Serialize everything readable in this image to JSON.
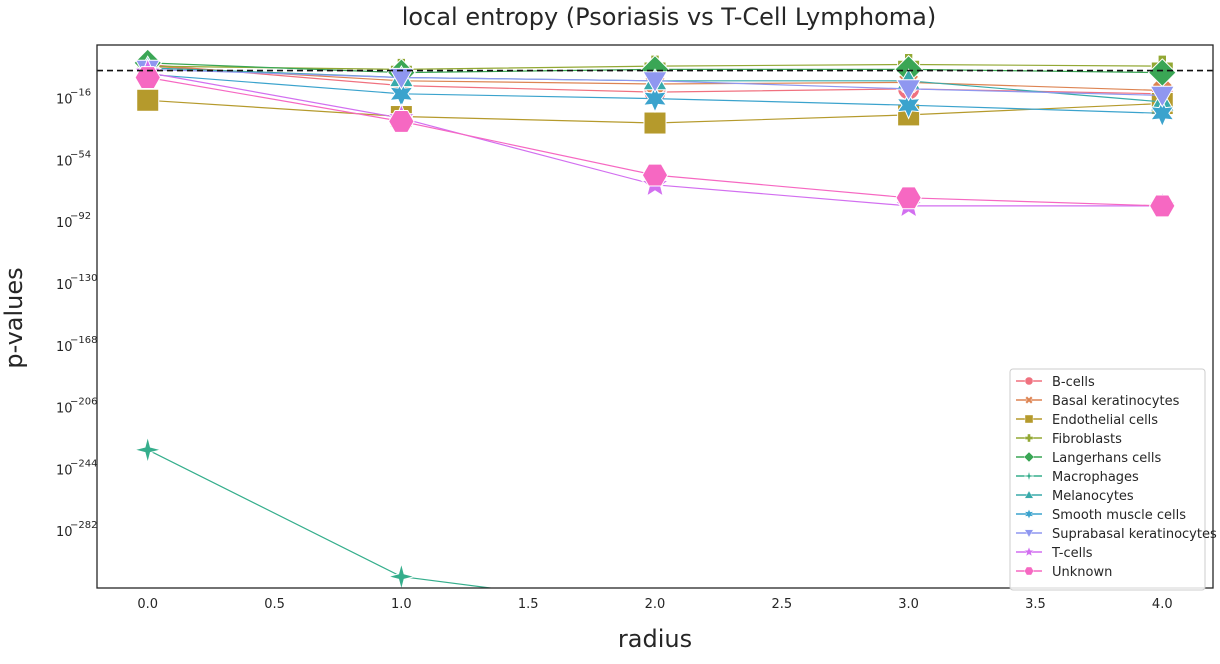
{
  "chart_data": {
    "type": "line",
    "title": "local entropy (Psoriasis vs T-Cell Lymphoma)",
    "xlabel": "radius",
    "ylabel": "p-values",
    "y_scale": "log",
    "x": [
      0,
      1,
      2,
      3,
      4
    ],
    "xlim": [
      -0.2,
      4.2
    ],
    "ylim_exponent": [
      -317,
      17
    ],
    "x_ticks": [
      {
        "value": 0.0,
        "label": "0.0"
      },
      {
        "value": 0.5,
        "label": "0.5"
      },
      {
        "value": 1.0,
        "label": "1.0"
      },
      {
        "value": 1.5,
        "label": "1.5"
      },
      {
        "value": 2.0,
        "label": "2.0"
      },
      {
        "value": 2.5,
        "label": "2.5"
      },
      {
        "value": 3.0,
        "label": "3.0"
      },
      {
        "value": 3.5,
        "label": "3.5"
      },
      {
        "value": 4.0,
        "label": "4.0"
      }
    ],
    "y_ticks": [
      {
        "exponent": -16,
        "base": "10",
        "sup": "−16"
      },
      {
        "exponent": -54,
        "base": "10",
        "sup": "−54"
      },
      {
        "exponent": -92,
        "base": "10",
        "sup": "−92"
      },
      {
        "exponent": -130,
        "base": "10",
        "sup": "−130"
      },
      {
        "exponent": -168,
        "base": "10",
        "sup": "−168"
      },
      {
        "exponent": -206,
        "base": "10",
        "sup": "−206"
      },
      {
        "exponent": -244,
        "base": "10",
        "sup": "−244"
      },
      {
        "exponent": -282,
        "base": "10",
        "sup": "−282"
      }
    ],
    "significance_line_exponent": 1.3,
    "grid": false,
    "legend_position": "lower right",
    "series": [
      {
        "name": "B-cells",
        "color": "#f0717f",
        "marker": "circle",
        "log10_values": [
          5,
          -8,
          -12,
          -10,
          -13
        ]
      },
      {
        "name": "Basal keratinocytes",
        "color": "#dd8452",
        "marker": "x",
        "log10_values": [
          4,
          -5,
          -7,
          -6,
          -11
        ]
      },
      {
        "name": "Endothelial cells",
        "color": "#b59a2c",
        "marker": "square",
        "log10_values": [
          -17,
          -27,
          -31,
          -26,
          -19
        ]
      },
      {
        "name": "Fibroblasts",
        "color": "#93a834",
        "marker": "plus",
        "log10_values": [
          4,
          2,
          4,
          5,
          4
        ]
      },
      {
        "name": "Langerhans cells",
        "color": "#3aa655",
        "marker": "diamond",
        "log10_values": [
          6,
          0,
          2,
          2,
          0
        ]
      },
      {
        "name": "Macrophages",
        "color": "#35ae8c",
        "marker": "star4",
        "log10_values": [
          -232,
          -310,
          -330,
          -330,
          -330
        ]
      },
      {
        "name": "Melanocytes",
        "color": "#38aaaa",
        "marker": "triangle-up",
        "log10_values": [
          3,
          -3,
          -5,
          -5,
          -18
        ]
      },
      {
        "name": "Smooth muscle cells",
        "color": "#3ba3cd",
        "marker": "star6",
        "log10_values": [
          -1,
          -13,
          -16,
          -20,
          -25
        ]
      },
      {
        "name": "Suprabasal keratinocytes",
        "color": "#8f97f0",
        "marker": "triangle-down",
        "log10_values": [
          2,
          -3,
          -5,
          -10,
          -14
        ]
      },
      {
        "name": "T-cells",
        "color": "#d26ff0",
        "marker": "star5",
        "log10_values": [
          0,
          -28,
          -69,
          -82,
          -82
        ]
      },
      {
        "name": "Unknown",
        "color": "#f668c2",
        "marker": "hexagon",
        "log10_values": [
          -3,
          -30,
          -63,
          -77,
          -82
        ]
      }
    ]
  }
}
